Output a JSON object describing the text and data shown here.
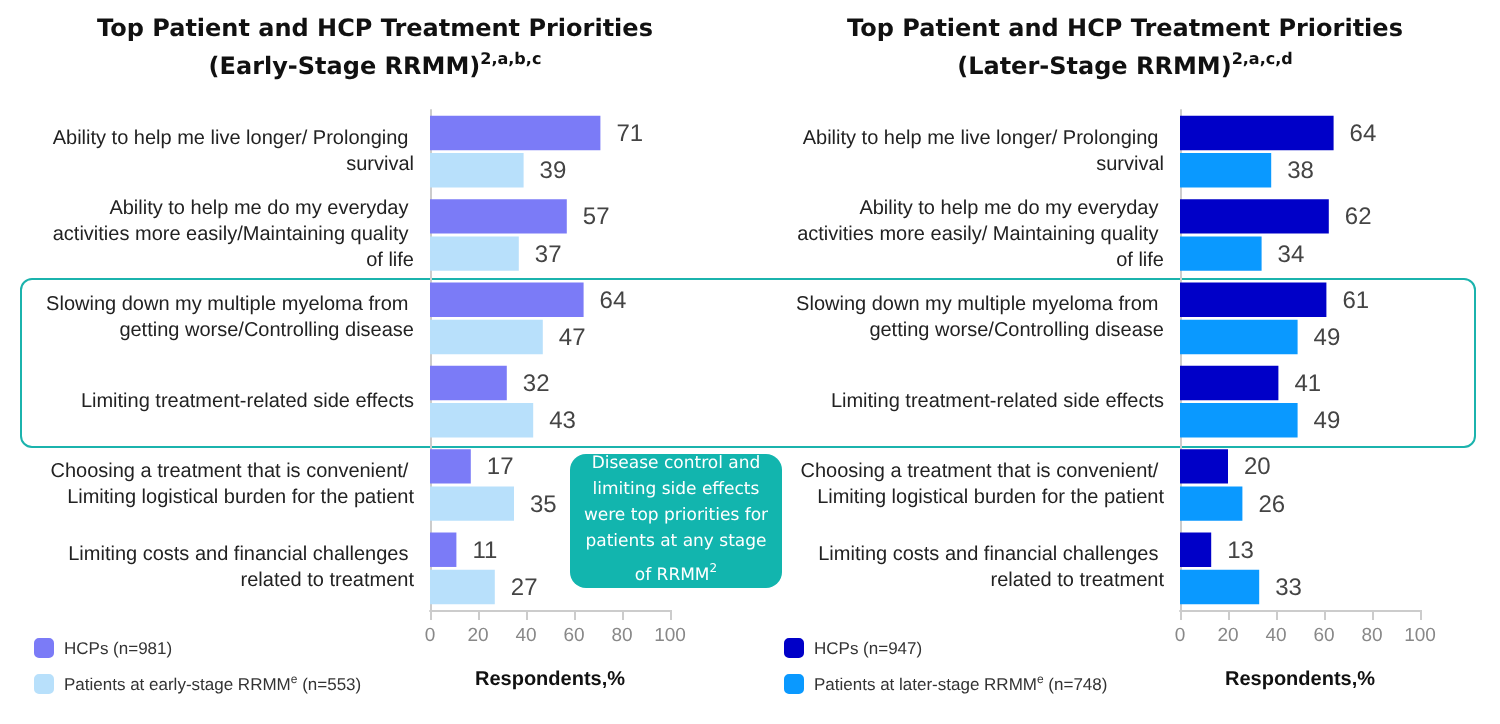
{
  "chart_data": [
    {
      "type": "bar",
      "orientation": "horizontal",
      "title": "Top Patient and HCP Treatment Priorities (Early-Stage RRMM)$^{2,a,b,c}$",
      "xlabel": "Respondents,%",
      "categories": [
        "Ability to help me live longer/ Prolonging survival",
        "Ability to help me do my everyday activities more easily/Maintaining quality of life",
        "Slowing down my multiple myeloma from getting worse/Controlling disease",
        "Limiting treatment-related side effects",
        "Choosing a treatment that is convenient/ Limiting logistical burden for the patient",
        "Limiting costs and financial challenges related to treatment"
      ],
      "series": [
        {
          "name": "HCPs (n=981)",
          "color": "#7b7bf7",
          "values": [
            71,
            57,
            64,
            32,
            17,
            11
          ]
        },
        {
          "name": "Patients at early-stage RRMM$^{e}$ (n=553)",
          "color": "#b8e0fb",
          "values": [
            39,
            37,
            47,
            43,
            35,
            27
          ]
        }
      ],
      "xlim": [
        0,
        100
      ],
      "xticks": [
        0,
        20,
        40,
        60,
        80,
        100
      ],
      "data_labels": true,
      "grid": false,
      "legend": "bottom left",
      "annotations": [
        "Disease control and limiting side effects were top priorities for patients at any stage of RRMM$^{2}$"
      ]
    },
    {
      "type": "bar",
      "orientation": "horizontal",
      "title": "Top Patient and HCP Treatment Priorities (Later-Stage RRMM)$^{2,a,c,d}$",
      "xlabel": "Respondents,%",
      "categories": [
        "Ability to help me live longer/ Prolonging survival",
        "Ability to help me do my everyday activities more easily/ Maintaining quality of life",
        "Slowing down my multiple myeloma from getting worse/Controlling disease",
        "Limiting treatment-related side effects",
        "Choosing a treatment that is convenient/ Limiting logistical burden for the patient",
        "Limiting costs and financial challenges related to treatment"
      ],
      "series": [
        {
          "name": "HCPs (n=947)",
          "color": "#0000c8",
          "values": [
            64,
            62,
            61,
            41,
            20,
            13
          ]
        },
        {
          "name": "Patients at later-stage RRMM$^{e}$ (n=748)",
          "color": "#0a99ff",
          "values": [
            38,
            34,
            49,
            49,
            26,
            33
          ]
        }
      ],
      "xlim": [
        0,
        100
      ],
      "xticks": [
        0,
        20,
        40,
        60,
        80,
        100
      ],
      "data_labels": true,
      "grid": false,
      "legend": "bottom left"
    }
  ]
}
